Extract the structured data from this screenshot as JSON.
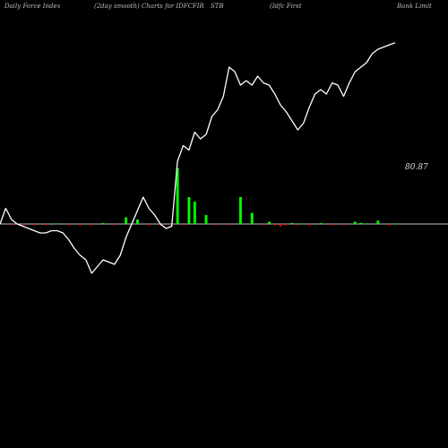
{
  "header": {
    "part1": "Daily Force  Index",
    "part2": "(2day smooth) Charts for IDFCFIR",
    "part3": "STB",
    "part4": "(Idfc First",
    "part5": "Bank Limit"
  },
  "chart_data": {
    "type": "line",
    "title": "Daily Force  Index (2day smooth) Charts for IDFCFIRSTB (Idfc First Bank Limit",
    "last_value_label": "80.87",
    "zero_baseline": true,
    "colors": {
      "background": "#000000",
      "line": "#ffffff",
      "baseline": "#ffffff",
      "positive_bar": "#00ff00",
      "negative_bar": "#ff0000"
    },
    "series": [
      {
        "type": "line",
        "values": [
          0,
          7,
          2,
          0,
          -1,
          -2,
          -3,
          -4,
          -4,
          -3,
          -3,
          -4,
          -7,
          -11,
          -14,
          -16,
          -22,
          -19,
          -16,
          -17,
          -18,
          -14,
          -6,
          0,
          6,
          12,
          7,
          4,
          0,
          -2,
          -1,
          28,
          35,
          33,
          41,
          38,
          40,
          48,
          51,
          57,
          70,
          68,
          62,
          64,
          62,
          66,
          63,
          62,
          58,
          53,
          50,
          46,
          42,
          45,
          52,
          58,
          60,
          58,
          63,
          62,
          57,
          63,
          68,
          70,
          72,
          76,
          78,
          79,
          80,
          80.87
        ]
      },
      {
        "type": "bar",
        "values": [
          0.5,
          0,
          0,
          0,
          0,
          0,
          0,
          0,
          0,
          0,
          0.3,
          0,
          0,
          0,
          0,
          0,
          0,
          0,
          0.4,
          0,
          0,
          0,
          3,
          0,
          2,
          0,
          0,
          0,
          0,
          0,
          0,
          25,
          0,
          12,
          10,
          0,
          4,
          0,
          0,
          0,
          0,
          0,
          12,
          0,
          5,
          0,
          0,
          1,
          0,
          -1,
          0,
          0.5,
          0,
          0.3,
          0,
          0,
          0.4,
          0,
          -0.5,
          0,
          0,
          0,
          1,
          0.5,
          0.3,
          0,
          1.5,
          0,
          0,
          0.3
        ]
      }
    ]
  }
}
